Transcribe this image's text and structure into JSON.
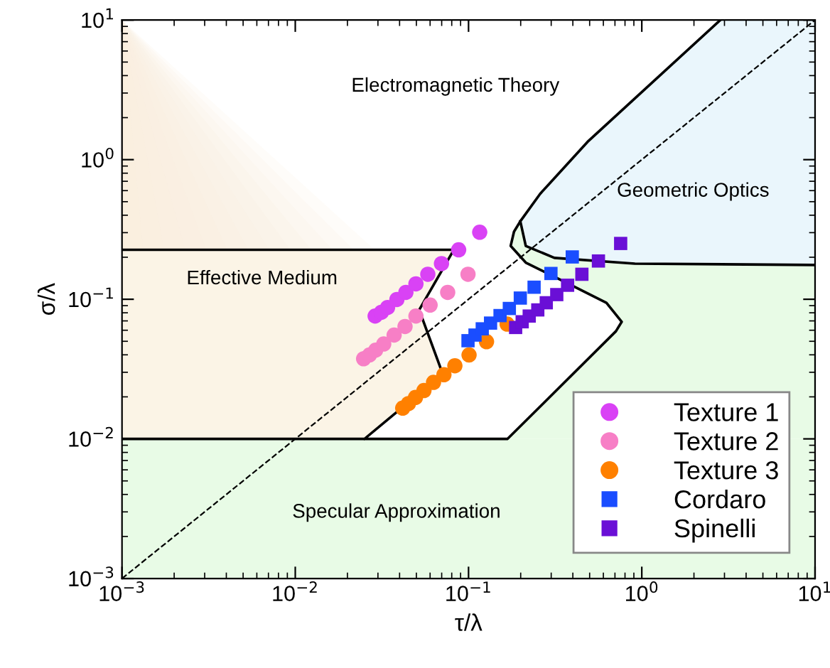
{
  "chart_data": {
    "type": "scatter",
    "xlabel": "τ/λ",
    "ylabel": "σ/λ",
    "log": "xy",
    "grid": false,
    "legend": "bottom right",
    "xlim": [
      0.001,
      10
    ],
    "ylim": [
      0.001,
      10
    ],
    "xticks": [
      {
        "value": 0.001,
        "label": "10$^{−3}$"
      },
      {
        "value": 0.01,
        "label": "10$^{−2}$"
      },
      {
        "value": 0.1,
        "label": "10$^{−1}$"
      },
      {
        "value": 1,
        "label": "10$^{0}$"
      },
      {
        "value": 10,
        "label": "10$^{1}$"
      }
    ],
    "yticks": [
      {
        "value": 0.001,
        "label": "10$^{−3}$"
      },
      {
        "value": 0.01,
        "label": "10$^{−2}$"
      },
      {
        "value": 0.1,
        "label": "10$^{−1}$"
      },
      {
        "value": 1,
        "label": "10$^{0}$"
      },
      {
        "value": 10,
        "label": "10$^{1}$"
      }
    ],
    "annotations": [
      "Electromagnetic Theory",
      "Geometric Optics",
      "Effective Medium",
      "Specular Approximation"
    ],
    "series": [
      {
        "name": "Texture 1",
        "marker": "circle",
        "color": "#d942f5",
        "x": [
          0.0289,
          0.0314,
          0.0341,
          0.0386,
          0.0435,
          0.0497,
          0.0582,
          0.0698,
          0.0877,
          0.116
        ],
        "values": [
          0.0758,
          0.0807,
          0.0873,
          0.0996,
          0.112,
          0.129,
          0.151,
          0.18,
          0.226,
          0.302
        ]
      },
      {
        "name": "Texture 2",
        "marker": "circle",
        "color": "#f77fc6",
        "x": [
          0.0248,
          0.0268,
          0.0291,
          0.0324,
          0.0372,
          0.043,
          0.0497,
          0.06,
          0.0758,
          0.0993
        ],
        "values": [
          0.0375,
          0.0399,
          0.0432,
          0.0478,
          0.0554,
          0.0638,
          0.0758,
          0.0908,
          0.112,
          0.151
        ]
      },
      {
        "name": "Texture 3",
        "marker": "circle",
        "color": "#ff8000",
        "x": [
          0.0417,
          0.045,
          0.0494,
          0.0553,
          0.0628,
          0.0721,
          0.0834,
          0.1007,
          0.127,
          0.167
        ],
        "values": [
          0.0166,
          0.0179,
          0.0198,
          0.0222,
          0.0254,
          0.0288,
          0.0334,
          0.0399,
          0.0497,
          0.0664
        ]
      },
      {
        "name": "Cordaro",
        "marker": "square",
        "color": "#1a4dff",
        "x": [
          0.0993,
          0.109,
          0.12,
          0.134,
          0.152,
          0.172,
          0.199,
          0.239,
          0.299,
          0.397
        ],
        "values": [
          0.0505,
          0.0554,
          0.0614,
          0.0675,
          0.0764,
          0.0859,
          0.102,
          0.122,
          0.153,
          0.201
        ]
      },
      {
        "name": "Spinelli",
        "marker": "square",
        "color": "#6a0fd6",
        "x": [
          0.187,
          0.204,
          0.224,
          0.251,
          0.281,
          0.323,
          0.373,
          0.451,
          0.562,
          0.755
        ],
        "values": [
          0.0628,
          0.069,
          0.0758,
          0.0839,
          0.0944,
          0.108,
          0.126,
          0.151,
          0.188,
          0.251
        ]
      },
      {
        "type": "line",
        "color": "#000000",
        "x": [
          0.001,
          0.0822,
          0.0519,
          0.069,
          null,
          0.0251,
          0.041,
          null,
          0.001,
          0.168,
          0.709,
          0.766,
          0.625,
          0.378,
          0.214,
          0.175,
          0.183,
          0.199,
          null,
          0.199,
          0.259,
          0.486,
          2.84,
          null,
          0.199,
          0.214,
          0.313,
          0.912,
          10
        ],
        "values": [
          0.226,
          0.226,
          0.0839,
          0.0321,
          null,
          0.01,
          0.0166,
          null,
          0.01,
          0.01,
          0.059,
          0.069,
          0.0944,
          0.129,
          0.183,
          0.241,
          0.305,
          0.362,
          null,
          0.362,
          0.569,
          1.34,
          10,
          null,
          0.362,
          0.241,
          0.198,
          0.18,
          0.176
        ]
      },
      {
        "type": "line",
        "color": "#000000",
        "line_style": "dashed",
        "x": [
          0.001,
          10
        ],
        "values": [
          0.001,
          10
        ]
      }
    ]
  }
}
